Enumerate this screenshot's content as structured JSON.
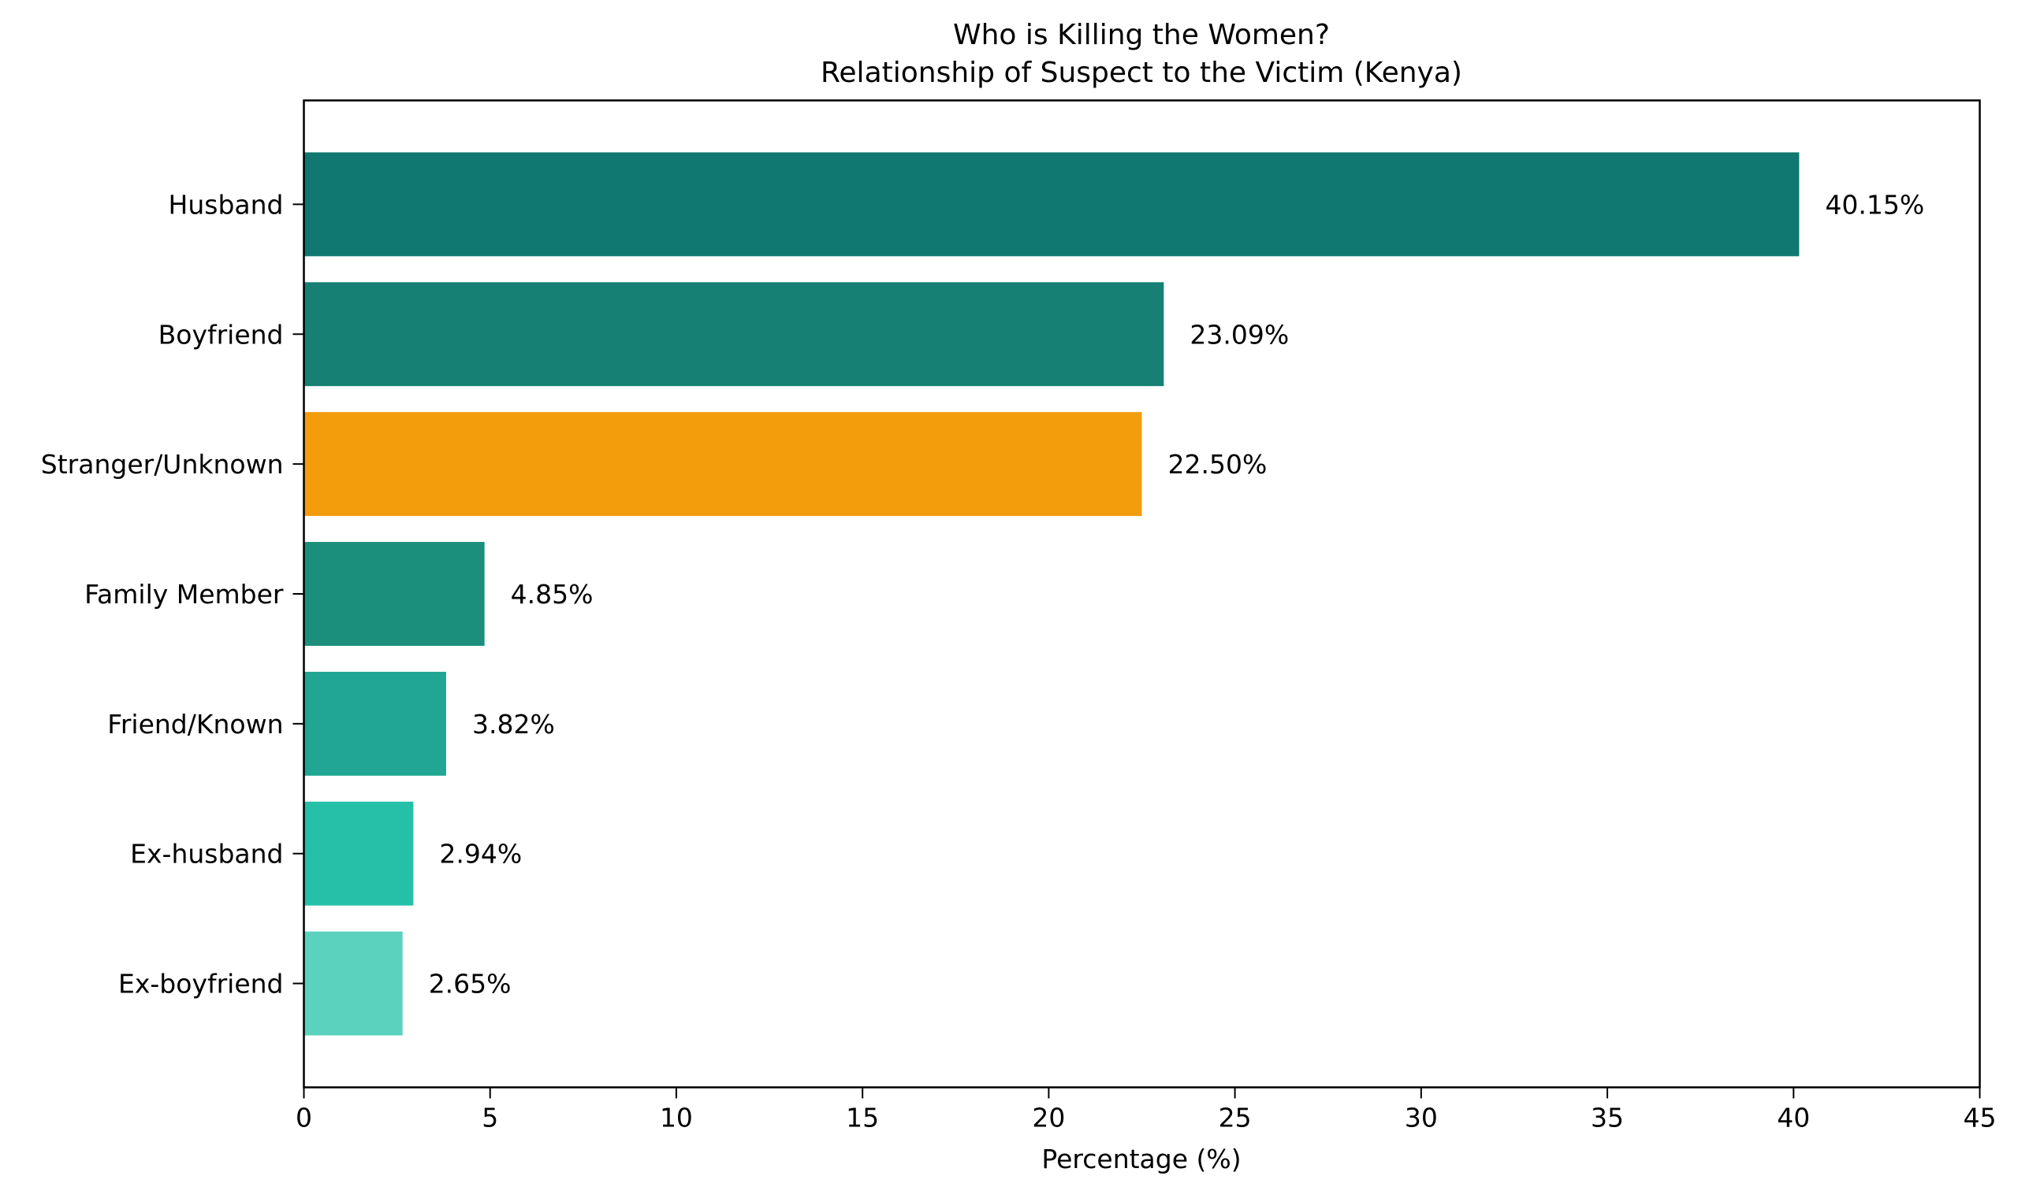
{
  "chart_data": {
    "type": "bar",
    "orientation": "horizontal",
    "title": "Who is Killing the Women?",
    "subtitle": "Relationship of Suspect to the Victim (Kenya)",
    "xlabel": "Percentage (%)",
    "ylabel": "",
    "xlim": [
      0,
      45
    ],
    "xticks": [
      0,
      5,
      10,
      15,
      20,
      25,
      30,
      35,
      40,
      45
    ],
    "grid": false,
    "categories": [
      "Husband",
      "Boyfriend",
      "Stranger/Unknown",
      "Family Member",
      "Friend/Known",
      "Ex-husband",
      "Ex-boyfriend"
    ],
    "values": [
      40.15,
      23.09,
      22.5,
      4.85,
      3.82,
      2.94,
      2.65
    ],
    "data_labels": [
      "40.15%",
      "23.09%",
      "22.50%",
      "4.85%",
      "3.82%",
      "2.94%",
      "2.65%"
    ],
    "colors": [
      "#107870",
      "#158073",
      "#f39c0c",
      "#1b8f7c",
      "#20a693",
      "#26c0a8",
      "#5ad2be"
    ]
  }
}
